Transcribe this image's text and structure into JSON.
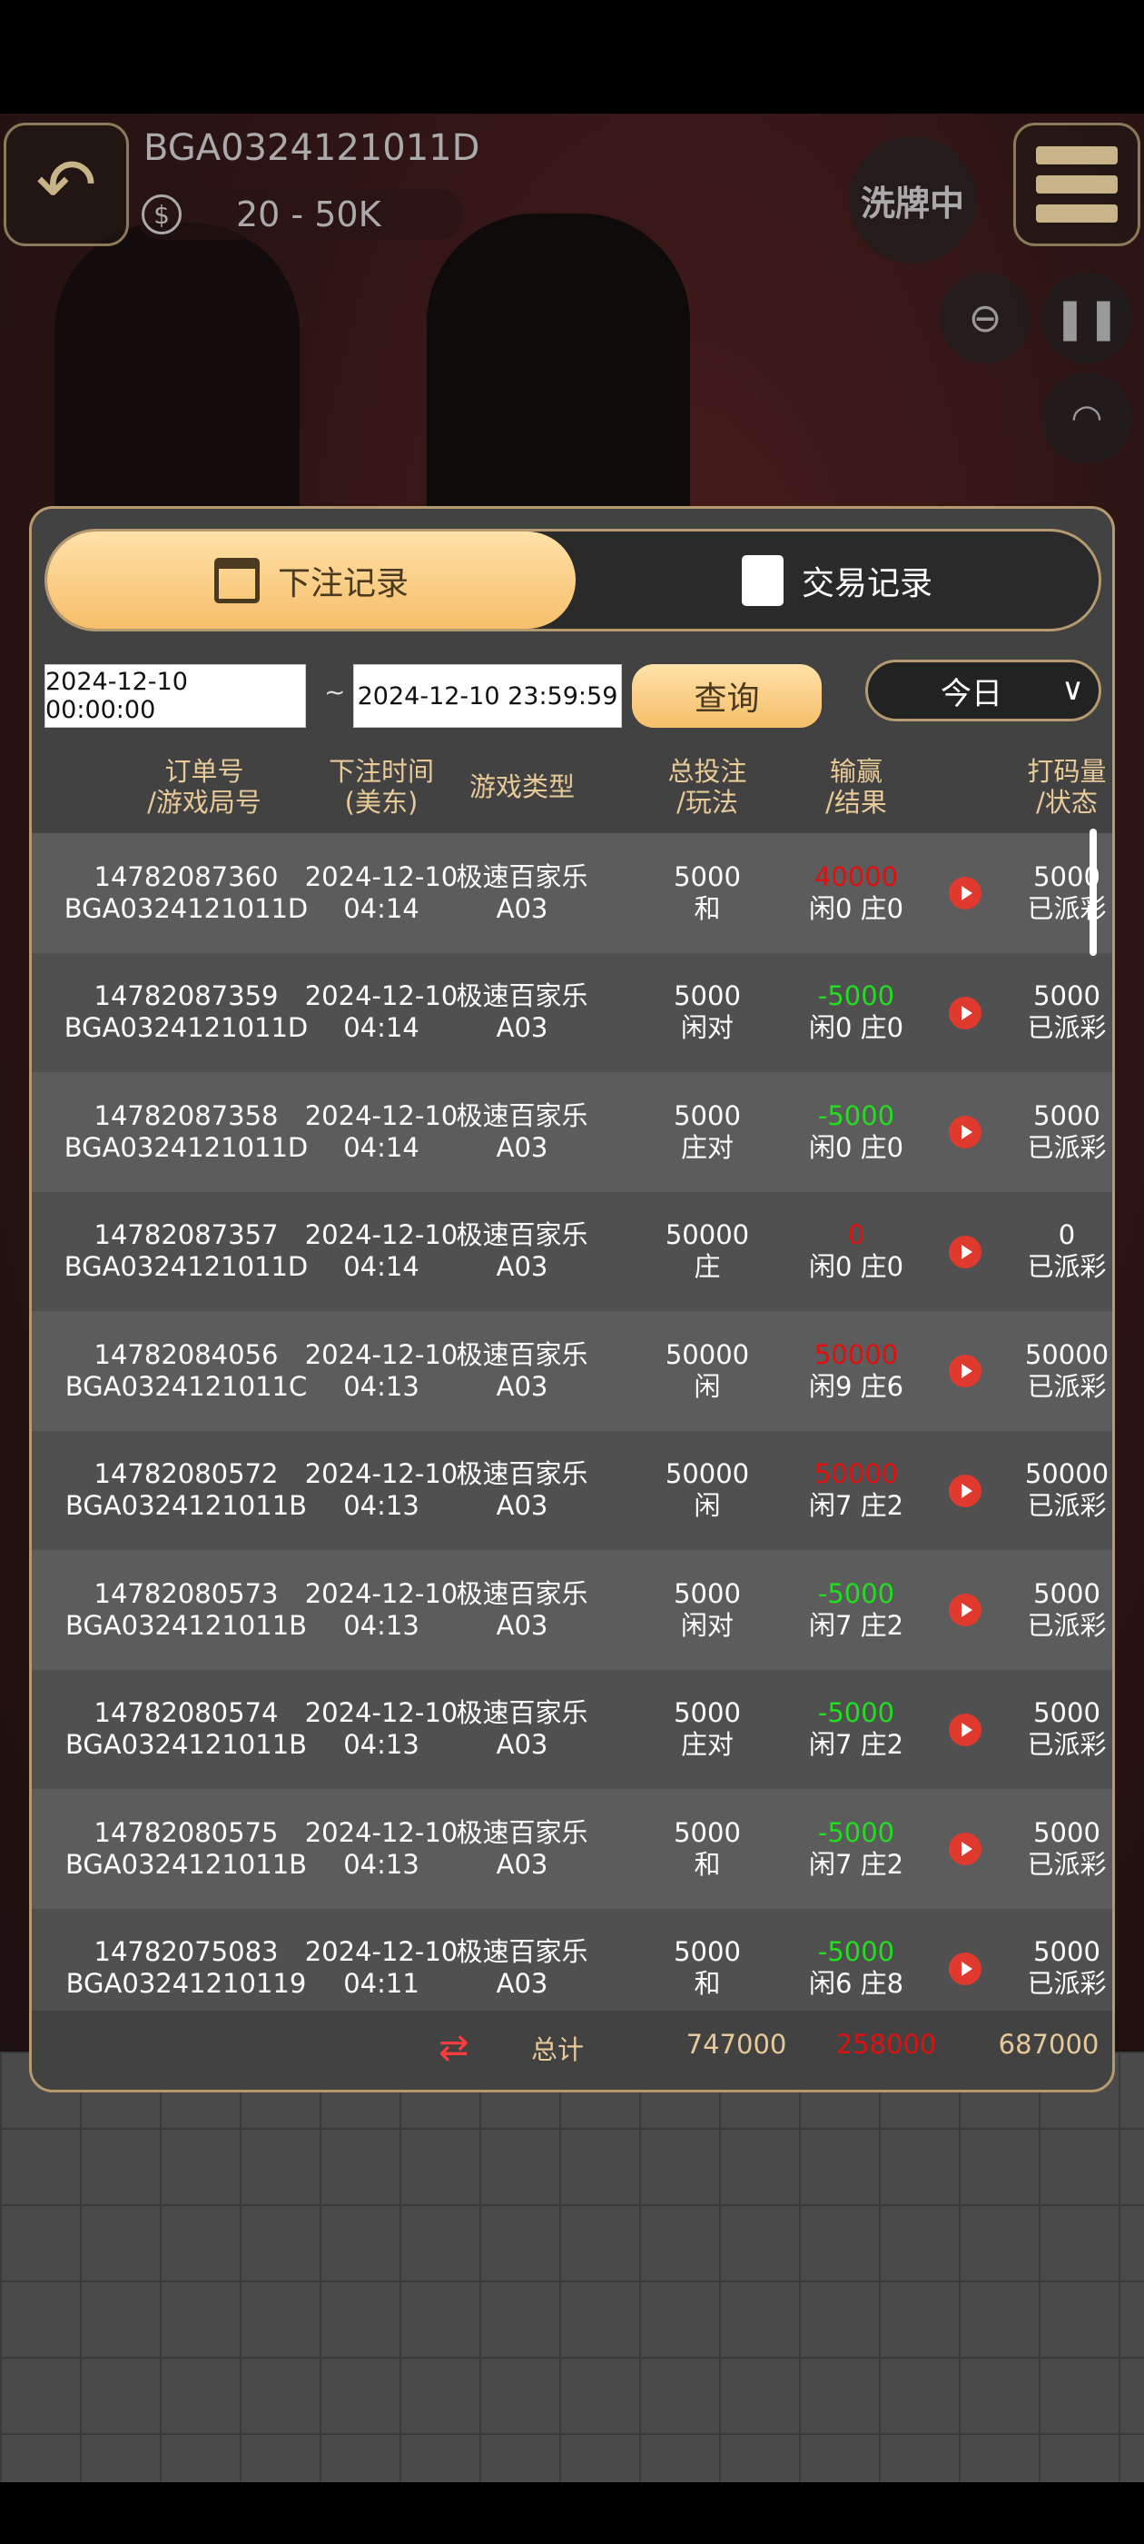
{
  "header": {
    "table_id": "BGA0324121011D",
    "limit": "20 - 50K",
    "status": "洗牌中"
  },
  "icons": {
    "back": "back-arrow-icon",
    "coin": "dollar-coin-icon",
    "menu": "menu-icon",
    "zoom": "zoom-out-icon",
    "pause": "pause-icon",
    "wifi": "wifi-icon",
    "calendar": "calendar-icon",
    "clipboard": "clipboard-icon",
    "refresh": "refresh-icon",
    "play": "play-icon"
  },
  "tabs": [
    {
      "label": "下注记录",
      "active": true
    },
    {
      "label": "交易记录",
      "active": false
    }
  ],
  "filter": {
    "start": "2024-12-10 00:00:00",
    "separator": "~",
    "end": "2024-12-10 23:59:59",
    "query_label": "查询",
    "range": "今日"
  },
  "columns": [
    [
      "订单号",
      "/游戏局号"
    ],
    [
      "下注时间",
      "(美东)"
    ],
    [
      "游戏类型",
      ""
    ],
    [
      "总投注",
      "/玩法"
    ],
    [
      "输赢",
      "/结果"
    ],
    [
      "打码量",
      "/状态"
    ]
  ],
  "colors": {
    "win": "#e01010",
    "loss": "#22dd22",
    "accent": "#f6bf6a",
    "border": "#b49a6e"
  },
  "rows": [
    {
      "order": "14782087360",
      "round": "BGA0324121011D",
      "date": "2024-12-10",
      "time": "04:14",
      "game": "极速百家乐",
      "table": "A03",
      "bet": "5000",
      "play": "和",
      "winloss": "40000",
      "result": "闲0 庄0",
      "turnover": "5000",
      "status": "已派彩"
    },
    {
      "order": "14782087359",
      "round": "BGA0324121011D",
      "date": "2024-12-10",
      "time": "04:14",
      "game": "极速百家乐",
      "table": "A03",
      "bet": "5000",
      "play": "闲对",
      "winloss": "-5000",
      "result": "闲0 庄0",
      "turnover": "5000",
      "status": "已派彩"
    },
    {
      "order": "14782087358",
      "round": "BGA0324121011D",
      "date": "2024-12-10",
      "time": "04:14",
      "game": "极速百家乐",
      "table": "A03",
      "bet": "5000",
      "play": "庄对",
      "winloss": "-5000",
      "result": "闲0 庄0",
      "turnover": "5000",
      "status": "已派彩"
    },
    {
      "order": "14782087357",
      "round": "BGA0324121011D",
      "date": "2024-12-10",
      "time": "04:14",
      "game": "极速百家乐",
      "table": "A03",
      "bet": "50000",
      "play": "庄",
      "winloss": "0",
      "result": "闲0 庄0",
      "turnover": "0",
      "status": "已派彩"
    },
    {
      "order": "14782084056",
      "round": "BGA0324121011C",
      "date": "2024-12-10",
      "time": "04:13",
      "game": "极速百家乐",
      "table": "A03",
      "bet": "50000",
      "play": "闲",
      "winloss": "50000",
      "result": "闲9 庄6",
      "turnover": "50000",
      "status": "已派彩"
    },
    {
      "order": "14782080572",
      "round": "BGA0324121011B",
      "date": "2024-12-10",
      "time": "04:13",
      "game": "极速百家乐",
      "table": "A03",
      "bet": "50000",
      "play": "闲",
      "winloss": "50000",
      "result": "闲7 庄2",
      "turnover": "50000",
      "status": "已派彩"
    },
    {
      "order": "14782080573",
      "round": "BGA0324121011B",
      "date": "2024-12-10",
      "time": "04:13",
      "game": "极速百家乐",
      "table": "A03",
      "bet": "5000",
      "play": "闲对",
      "winloss": "-5000",
      "result": "闲7 庄2",
      "turnover": "5000",
      "status": "已派彩"
    },
    {
      "order": "14782080574",
      "round": "BGA0324121011B",
      "date": "2024-12-10",
      "time": "04:13",
      "game": "极速百家乐",
      "table": "A03",
      "bet": "5000",
      "play": "庄对",
      "winloss": "-5000",
      "result": "闲7 庄2",
      "turnover": "5000",
      "status": "已派彩"
    },
    {
      "order": "14782080575",
      "round": "BGA0324121011B",
      "date": "2024-12-10",
      "time": "04:13",
      "game": "极速百家乐",
      "table": "A03",
      "bet": "5000",
      "play": "和",
      "winloss": "-5000",
      "result": "闲7 庄2",
      "turnover": "5000",
      "status": "已派彩"
    },
    {
      "order": "14782075083",
      "round": "BGA03241210119",
      "date": "2024-12-10",
      "time": "04:11",
      "game": "极速百家乐",
      "table": "A03",
      "bet": "5000",
      "play": "和",
      "winloss": "-5000",
      "result": "闲6 庄8",
      "turnover": "5000",
      "status": "已派彩"
    }
  ],
  "total": {
    "label": "总计",
    "bet": "747000",
    "winloss": "258000",
    "turnover": "687000"
  }
}
